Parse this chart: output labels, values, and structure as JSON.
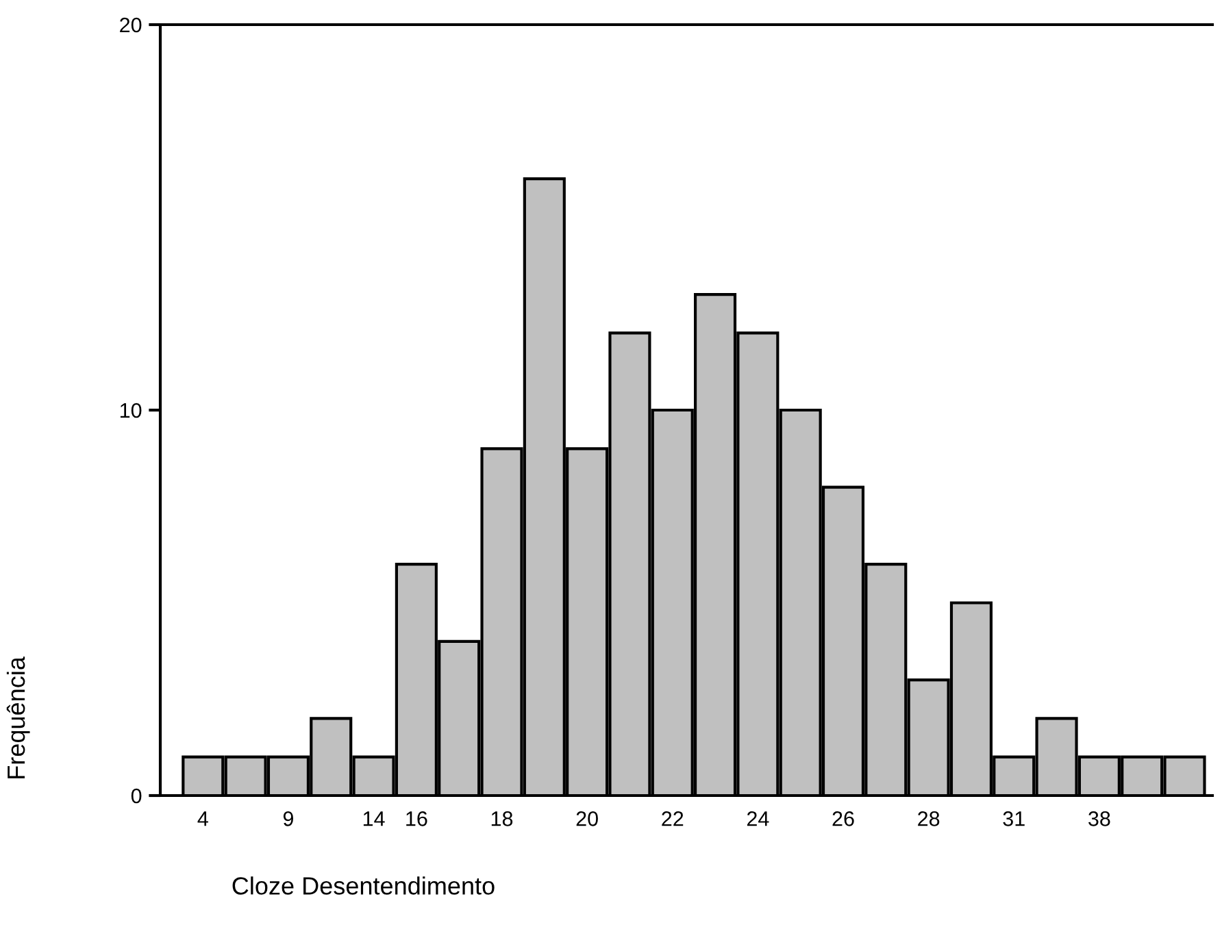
{
  "chart_data": {
    "type": "bar",
    "xlabel": "Cloze Desentendimento",
    "ylabel": "Frequência",
    "categories": [
      "4",
      null,
      "9",
      null,
      "14",
      "16",
      null,
      "18",
      null,
      "20",
      null,
      "22",
      null,
      "24",
      null,
      "26",
      null,
      "28",
      null,
      "31",
      null,
      "38",
      null,
      null
    ],
    "values": [
      1,
      1,
      1,
      2,
      1,
      6,
      4,
      9,
      16,
      9,
      12,
      10,
      13,
      12,
      10,
      8,
      6,
      3,
      5,
      1,
      2,
      1,
      1,
      1
    ],
    "color": "#c0c0c0",
    "ylim": [
      0,
      20
    ],
    "yticks": [
      0,
      10,
      20
    ],
    "grid": false,
    "legend": false
  }
}
